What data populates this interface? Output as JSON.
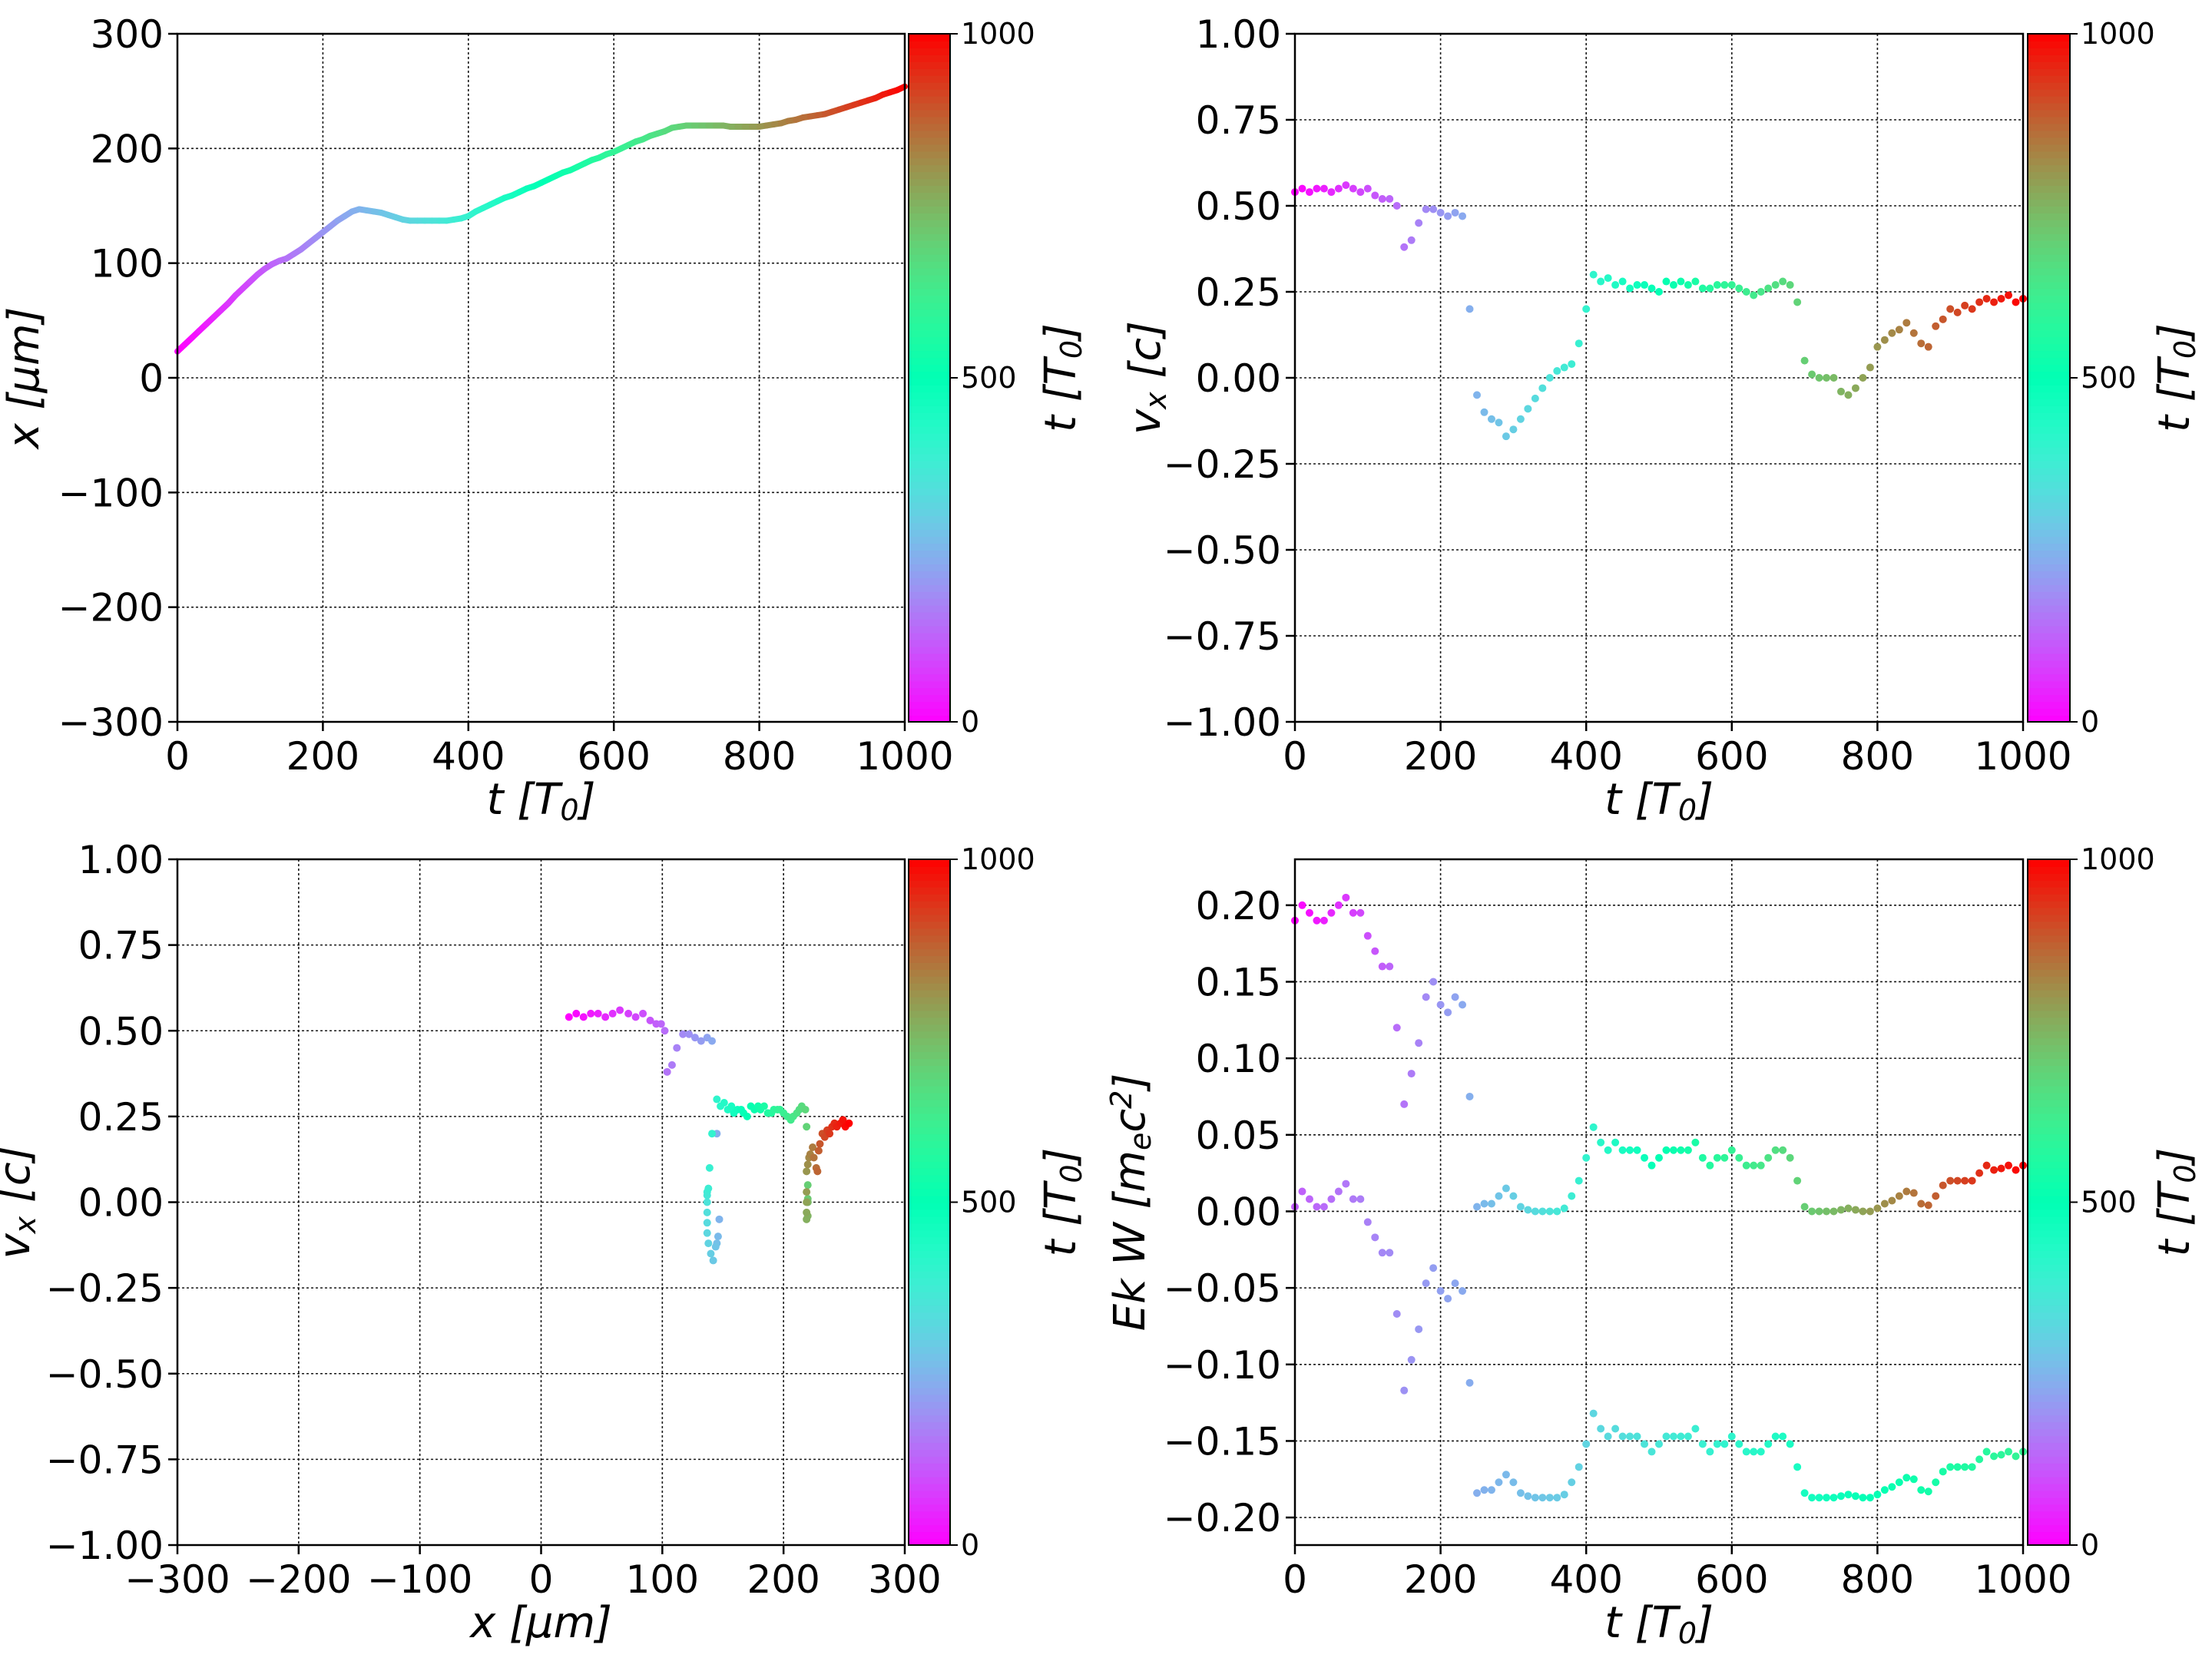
{
  "colormap": "rainbow",
  "chart_data": [
    {
      "id": "x_vs_t",
      "type": "line",
      "xlabel": "t  [T_0]",
      "ylabel": "x  [μm]",
      "xlim": [
        0,
        1000
      ],
      "ylim": [
        -300,
        300
      ],
      "xticks": [
        "0",
        "200",
        "400",
        "600",
        "800",
        "1000"
      ],
      "yticks": [
        "−300",
        "−200",
        "−100",
        "0",
        "100",
        "200",
        "300"
      ],
      "grid": true,
      "colorbar": {
        "label": "t [T_0]",
        "ticks": [
          "0",
          "500",
          "1000"
        ],
        "range": [
          0,
          1000
        ]
      },
      "color_by": "t",
      "x_source": "t",
      "y_source": "x"
    },
    {
      "id": "vx_vs_t",
      "type": "scatter",
      "xlabel": "t [T_0]",
      "ylabel": "v_x [c]",
      "xlim": [
        0,
        1000
      ],
      "ylim": [
        -1,
        1
      ],
      "xticks": [
        "0",
        "200",
        "400",
        "600",
        "800",
        "1000"
      ],
      "yticks": [
        "−1.00",
        "−0.75",
        "−0.50",
        "−0.25",
        "0.00",
        "0.25",
        "0.50",
        "0.75",
        "1.00"
      ],
      "grid": true,
      "colorbar": {
        "label": "t [T_0]",
        "ticks": [
          "0",
          "500",
          "1000"
        ],
        "range": [
          0,
          1000
        ]
      },
      "color_by": "t",
      "x_source": "t",
      "y_source": "vx"
    },
    {
      "id": "vx_vs_x",
      "type": "scatter",
      "xlabel": "x [μm]",
      "ylabel": "v_x [c]",
      "xlim": [
        -300,
        300
      ],
      "ylim": [
        -1,
        1
      ],
      "xticks": [
        "−300",
        "−200",
        "−100",
        "0",
        "100",
        "200",
        "300"
      ],
      "yticks": [
        "−1.00",
        "−0.75",
        "−0.50",
        "−0.25",
        "0.00",
        "0.25",
        "0.50",
        "0.75",
        "1.00"
      ],
      "grid": true,
      "colorbar": {
        "label": "t [T_0]",
        "ticks": [
          "0",
          "500",
          "1000"
        ],
        "range": [
          0,
          1000
        ]
      },
      "color_by": "t",
      "x_source": "x",
      "y_source": "vx"
    },
    {
      "id": "ek_w_vs_t",
      "type": "scatter",
      "xlabel": "t [T_0]",
      "ylabel": "Ek W [m_ec^2]",
      "xlim": [
        0,
        1000
      ],
      "ylim": [
        -0.218,
        0.23
      ],
      "xticks": [
        "0",
        "200",
        "400",
        "600",
        "800",
        "1000"
      ],
      "ytick_values": [
        -0.2,
        -0.15,
        -0.1,
        -0.05,
        0,
        0.05,
        0.1,
        0.15,
        0.2
      ],
      "yticks": [
        "−0.20",
        "−0.15",
        "−0.10",
        "−0.05",
        "0.00",
        "0.05",
        "0.10",
        "0.15",
        "0.20"
      ],
      "grid": true,
      "colorbar": {
        "label": "t [T_0]",
        "ticks": [
          "0",
          "500",
          "1000"
        ],
        "range": [
          0,
          1000
        ]
      },
      "color_by": "t",
      "series": [
        {
          "source": "Ek",
          "color_range": [
            0,
            1
          ]
        },
        {
          "source": "W",
          "color_range": [
            0.12,
            0.6
          ]
        }
      ]
    }
  ],
  "samples": {
    "t": [
      0,
      10,
      20,
      30,
      40,
      50,
      60,
      70,
      80,
      90,
      100,
      110,
      120,
      130,
      140,
      150,
      160,
      170,
      180,
      190,
      200,
      210,
      220,
      230,
      240,
      250,
      260,
      270,
      280,
      290,
      300,
      310,
      320,
      330,
      340,
      350,
      360,
      370,
      380,
      390,
      400,
      410,
      420,
      430,
      440,
      450,
      460,
      470,
      480,
      490,
      500,
      510,
      520,
      530,
      540,
      550,
      560,
      570,
      580,
      590,
      600,
      610,
      620,
      630,
      640,
      650,
      660,
      670,
      680,
      690,
      700,
      710,
      720,
      730,
      740,
      750,
      760,
      770,
      780,
      790,
      800,
      810,
      820,
      830,
      840,
      850,
      860,
      870,
      880,
      890,
      900,
      910,
      920,
      930,
      940,
      950,
      960,
      970,
      980,
      990,
      1000
    ],
    "x": [
      23,
      29,
      35,
      41,
      47,
      53,
      59,
      65,
      72,
      78,
      84,
      90,
      95,
      99,
      102,
      104,
      108,
      112,
      117,
      122,
      127,
      132,
      137,
      141,
      145,
      147,
      146,
      145,
      144,
      142,
      140,
      138,
      137,
      137,
      137,
      137,
      137,
      137,
      138,
      139,
      141,
      145,
      148,
      151,
      154,
      157,
      159,
      162,
      165,
      167,
      170,
      173,
      176,
      179,
      181,
      184,
      187,
      190,
      192,
      195,
      197,
      200,
      203,
      206,
      208,
      211,
      213,
      215,
      218,
      219,
      220,
      220,
      220,
      220,
      220,
      220,
      219,
      219,
      219,
      219,
      219,
      220,
      221,
      222,
      224,
      225,
      227,
      228,
      229,
      230,
      232,
      234,
      236,
      238,
      240,
      242,
      244,
      247,
      249,
      251,
      254
    ],
    "vx": [
      0.54,
      0.55,
      0.54,
      0.55,
      0.55,
      0.54,
      0.55,
      0.56,
      0.55,
      0.54,
      0.55,
      0.53,
      0.52,
      0.52,
      0.5,
      0.38,
      0.4,
      0.45,
      0.49,
      0.49,
      0.48,
      0.47,
      0.48,
      0.47,
      0.2,
      -0.05,
      -0.1,
      -0.12,
      -0.13,
      -0.17,
      -0.15,
      -0.12,
      -0.09,
      -0.06,
      -0.03,
      0.0,
      0.02,
      0.03,
      0.04,
      0.1,
      0.2,
      0.3,
      0.28,
      0.29,
      0.27,
      0.28,
      0.26,
      0.27,
      0.27,
      0.26,
      0.25,
      0.28,
      0.27,
      0.28,
      0.27,
      0.28,
      0.26,
      0.26,
      0.27,
      0.27,
      0.27,
      0.26,
      0.25,
      0.24,
      0.25,
      0.26,
      0.27,
      0.28,
      0.27,
      0.22,
      0.05,
      0.01,
      0.0,
      0.0,
      0.0,
      -0.04,
      -0.05,
      -0.03,
      0.0,
      0.03,
      0.09,
      0.11,
      0.13,
      0.14,
      0.16,
      0.13,
      0.1,
      0.09,
      0.15,
      0.17,
      0.2,
      0.19,
      0.21,
      0.2,
      0.22,
      0.23,
      0.22,
      0.23,
      0.24,
      0.22,
      0.23
    ],
    "Ek": [
      0.19,
      0.2,
      0.195,
      0.19,
      0.19,
      0.195,
      0.2,
      0.205,
      0.195,
      0.195,
      0.18,
      0.17,
      0.16,
      0.16,
      0.12,
      0.07,
      0.09,
      0.11,
      0.14,
      0.15,
      0.135,
      0.13,
      0.14,
      0.135,
      0.075,
      0.003,
      0.005,
      0.005,
      0.01,
      0.015,
      0.01,
      0.003,
      0.001,
      0,
      0,
      0,
      0,
      0.002,
      0.01,
      0.02,
      0.035,
      0.055,
      0.045,
      0.04,
      0.045,
      0.04,
      0.04,
      0.04,
      0.035,
      0.03,
      0.035,
      0.04,
      0.04,
      0.04,
      0.04,
      0.045,
      0.035,
      0.03,
      0.035,
      0.035,
      0.04,
      0.035,
      0.03,
      0.03,
      0.03,
      0.035,
      0.04,
      0.04,
      0.035,
      0.02,
      0.003,
      0,
      0,
      0,
      0,
      0.001,
      0.002,
      0.001,
      0,
      0,
      0.002,
      0.005,
      0.007,
      0.01,
      0.013,
      0.012,
      0.005,
      0.004,
      0.01,
      0.017,
      0.02,
      0.02,
      0.02,
      0.02,
      0.025,
      0.03,
      0.027,
      0.028,
      0.03,
      0.027,
      0.03
    ],
    "W": [
      0.003,
      0.013,
      0.008,
      0.003,
      0.003,
      0.008,
      0.013,
      0.018,
      0.008,
      0.008,
      -0.007,
      -0.017,
      -0.027,
      -0.027,
      -0.067,
      -0.117,
      -0.097,
      -0.077,
      -0.047,
      -0.037,
      -0.052,
      -0.057,
      -0.047,
      -0.052,
      -0.112,
      -0.184,
      -0.182,
      -0.182,
      -0.177,
      -0.172,
      -0.177,
      -0.184,
      -0.186,
      -0.187,
      -0.187,
      -0.187,
      -0.187,
      -0.185,
      -0.177,
      -0.167,
      -0.152,
      -0.132,
      -0.142,
      -0.147,
      -0.142,
      -0.147,
      -0.147,
      -0.147,
      -0.152,
      -0.157,
      -0.152,
      -0.147,
      -0.147,
      -0.147,
      -0.147,
      -0.142,
      -0.152,
      -0.157,
      -0.152,
      -0.152,
      -0.147,
      -0.152,
      -0.157,
      -0.157,
      -0.157,
      -0.152,
      -0.147,
      -0.147,
      -0.152,
      -0.167,
      -0.184,
      -0.187,
      -0.187,
      -0.187,
      -0.187,
      -0.186,
      -0.185,
      -0.186,
      -0.187,
      -0.187,
      -0.185,
      -0.182,
      -0.18,
      -0.177,
      -0.174,
      -0.175,
      -0.182,
      -0.183,
      -0.177,
      -0.17,
      -0.167,
      -0.167,
      -0.167,
      -0.167,
      -0.162,
      -0.157,
      -0.16,
      -0.159,
      -0.157,
      -0.16,
      -0.157
    ]
  }
}
